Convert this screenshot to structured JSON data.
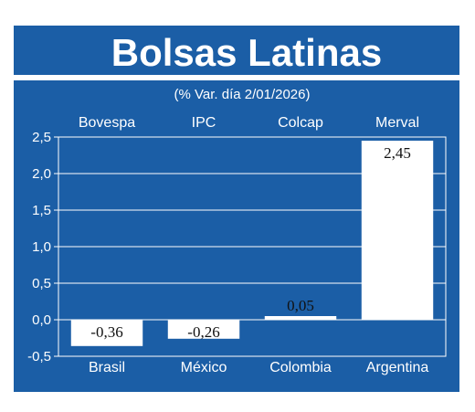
{
  "chart_data": {
    "type": "bar",
    "title": "Bolsas Latinas",
    "subtitle": "(% Var. día 2/01/2026)",
    "index_names": [
      "Bovespa",
      "IPC",
      "Colcap",
      "Merval"
    ],
    "categories": [
      "Brasil",
      "México",
      "Colombia",
      "Argentina"
    ],
    "values": [
      -0.36,
      -0.26,
      0.05,
      2.45
    ],
    "value_labels": [
      "-0,36",
      "-0,26",
      "0,05",
      "2,45"
    ],
    "yticks": [
      "-0,5",
      "0,0",
      "0,5",
      "1,0",
      "1,5",
      "2,0",
      "2,5"
    ],
    "ylim": [
      -0.5,
      2.5
    ],
    "grid": true,
    "colors": {
      "background": "#1b5ea6",
      "bar": "#ffffff",
      "grid": "#ffffff"
    }
  }
}
